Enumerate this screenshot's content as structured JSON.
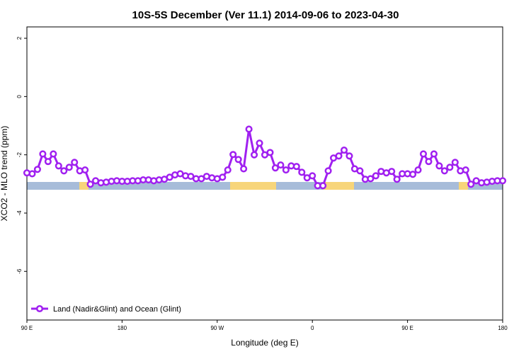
{
  "chart_data": {
    "type": "line",
    "title": "10S-5S December (Ver 11.1)   2014-09-06 to 2023-04-30",
    "xlabel": "Longitude (deg E)",
    "ylabel": "XCO2 - MLO trend (ppm)",
    "xlim": [
      90,
      540
    ],
    "ylim": [
      -7.67,
      2.39
    ],
    "xticks": [
      {
        "value": 90,
        "label": "90 E"
      },
      180,
      {
        "value": 270,
        "label": "90 W"
      },
      {
        "value": 360,
        "label": "0"
      },
      {
        "value": 450,
        "label": "90 E"
      },
      {
        "value": 540,
        "label": "180"
      }
    ],
    "yticks": [
      2,
      0,
      -2,
      -4,
      -6
    ],
    "legend": "bottom-left",
    "x": [
      90,
      95,
      100,
      105,
      110,
      115,
      120,
      125,
      130,
      135,
      140,
      145,
      150,
      155,
      160,
      165,
      170,
      175,
      180,
      185,
      190,
      195,
      200,
      205,
      210,
      215,
      220,
      225,
      230,
      235,
      240,
      245,
      250,
      255,
      260,
      265,
      270,
      275,
      280,
      285,
      290,
      295,
      300,
      305,
      310,
      315,
      320,
      325,
      330,
      335,
      340,
      345,
      350,
      355,
      360,
      365,
      370,
      375,
      380,
      385,
      390,
      395,
      400,
      405,
      410,
      415,
      420,
      425,
      430,
      435,
      440,
      445,
      450,
      455,
      460,
      465,
      470,
      475,
      480,
      485,
      490,
      495,
      500,
      505,
      510,
      515,
      520,
      525,
      530,
      535,
      540
    ],
    "series": [
      {
        "name": "Land (Nadir&Glint) and Ocean (Glint)",
        "color": "#a020f0",
        "values": [
          -2.62,
          -2.65,
          -2.5,
          -1.97,
          -2.23,
          -1.97,
          -2.38,
          -2.55,
          -2.43,
          -2.26,
          -2.55,
          -2.52,
          -3.01,
          -2.89,
          -2.96,
          -2.94,
          -2.91,
          -2.89,
          -2.91,
          -2.91,
          -2.89,
          -2.89,
          -2.86,
          -2.86,
          -2.89,
          -2.86,
          -2.84,
          -2.77,
          -2.69,
          -2.65,
          -2.72,
          -2.74,
          -2.82,
          -2.82,
          -2.74,
          -2.79,
          -2.82,
          -2.77,
          -2.52,
          -1.99,
          -2.16,
          -2.48,
          -1.12,
          -2.0,
          -1.6,
          -2.0,
          -1.92,
          -2.45,
          -2.35,
          -2.52,
          -2.38,
          -2.4,
          -2.6,
          -2.79,
          -2.72,
          -3.06,
          -3.06,
          -2.55,
          -2.11,
          -2.04,
          -1.84,
          -2.04,
          -2.48,
          -2.55,
          -2.84,
          -2.82,
          -2.72,
          -2.57,
          -2.62,
          -2.57,
          -2.84,
          -2.65,
          -2.65,
          -2.67,
          -2.52,
          -1.97,
          -2.23,
          -1.97,
          -2.38,
          -2.55,
          -2.43,
          -2.26,
          -2.55,
          -2.52,
          -3.01,
          -2.89,
          -2.96,
          -2.94,
          -2.91,
          -2.89,
          -2.89
        ]
      }
    ]
  }
}
